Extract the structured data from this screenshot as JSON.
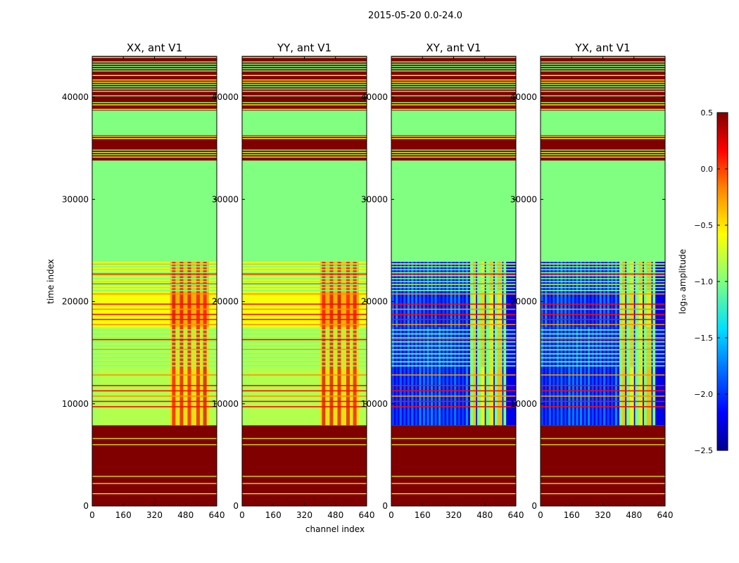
{
  "figure": {
    "suptitle": "2015-05-20 0.0-24.0"
  },
  "chart_data": {
    "type": "heatmap",
    "title": "2015-05-20 0.0-24.0",
    "xlabel": "channel index",
    "ylabel": "time index",
    "xlim": [
      0,
      640
    ],
    "ylim": [
      0,
      44000
    ],
    "xticks": [
      0,
      160,
      320,
      480,
      640
    ],
    "yticks": [
      0,
      10000,
      20000,
      30000,
      40000
    ],
    "colorbar": {
      "label": "log₁₀ amplitude",
      "range": [
        -2.5,
        0.5
      ],
      "ticks": [
        0.5,
        0.0,
        -0.5,
        -1.0,
        -1.5,
        -2.0,
        -2.5
      ],
      "tick_labels": [
        "0.5",
        "0.0",
        "−0.5",
        "−1.0",
        "−1.5",
        "−2.0",
        "−2.5"
      ],
      "colormap": [
        "#00008f",
        "#0000ff",
        "#0080ff",
        "#00ffff",
        "#80ff80",
        "#ffff00",
        "#ff8000",
        "#ff0000",
        "#800000"
      ]
    },
    "panels": [
      {
        "name": "XX, ant V1",
        "pattern": "parallel"
      },
      {
        "name": "YY, ant V1",
        "pattern": "parallel"
      },
      {
        "name": "XY, ant V1",
        "pattern": "cross"
      },
      {
        "name": "YX, ant V1",
        "pattern": "cross"
      }
    ],
    "regions": [
      {
        "t_start": 0,
        "t_end": 7900,
        "level": 0.5,
        "label": "flagged / high amplitude"
      },
      {
        "t_start": 7900,
        "t_end": 13600,
        "level_parallel": -0.85,
        "level_cross": -2.2,
        "label": "data"
      },
      {
        "t_start": 13600,
        "t_end": 17500,
        "level_parallel": -0.85,
        "level_cross": -2.1,
        "label": "data, many flags"
      },
      {
        "t_start": 17500,
        "t_end": 21000,
        "level_parallel": -0.65,
        "level_cross": -2.2,
        "label": "data"
      },
      {
        "t_start": 21000,
        "t_end": 23900,
        "level_parallel": -0.7,
        "level_cross": -2.2,
        "label": "data, many flags"
      },
      {
        "t_start": 23900,
        "t_end": 33800,
        "level": -1.0,
        "label": "no data"
      },
      {
        "t_start": 33800,
        "t_end": 36300,
        "level": 0.5,
        "label": "striped flags"
      },
      {
        "t_start": 36300,
        "t_end": 38700,
        "level": -1.0,
        "label": "no data"
      },
      {
        "t_start": 38700,
        "t_end": 44000,
        "level": 0.5,
        "label": "striped flags"
      }
    ]
  }
}
